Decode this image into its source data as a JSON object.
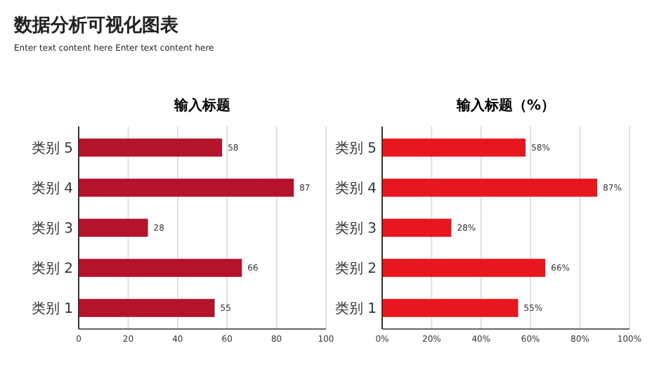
{
  "chart_data": [
    {
      "type": "bar",
      "orientation": "horizontal",
      "title": "输入标题",
      "annotations": [
        "数据分析可视化图表",
        "Enter text content here Enter text content here"
      ],
      "categories": [
        "类别 5",
        "类别 4",
        "类别 3",
        "类别 2",
        "类别 1"
      ],
      "values": [
        58,
        87,
        28,
        66,
        55
      ],
      "color": "#b5122c",
      "xlim": [
        0,
        100
      ],
      "xticks": [
        0,
        20,
        40,
        60,
        80,
        100
      ],
      "grid": "x",
      "data_labels": true
    },
    {
      "type": "bar",
      "orientation": "horizontal",
      "title": "输入标题（%）",
      "categories": [
        "类别 5",
        "类别 4",
        "类别 3",
        "类别 2",
        "类别 1"
      ],
      "values": [
        58,
        87,
        28,
        66,
        55
      ],
      "value_labels": [
        "58%",
        "87%",
        "28%",
        "66%",
        "55%"
      ],
      "color": "#e8161e",
      "xlim": [
        0,
        100
      ],
      "xticks": [
        {
          "value": 0,
          "label": "0%"
        },
        {
          "value": 20,
          "label": "20%"
        },
        {
          "value": 40,
          "label": "40%"
        },
        {
          "value": 60,
          "label": "60%"
        },
        {
          "value": 80,
          "label": "80%"
        },
        {
          "value": 100,
          "label": "100%"
        }
      ],
      "grid": "x"
    }
  ]
}
